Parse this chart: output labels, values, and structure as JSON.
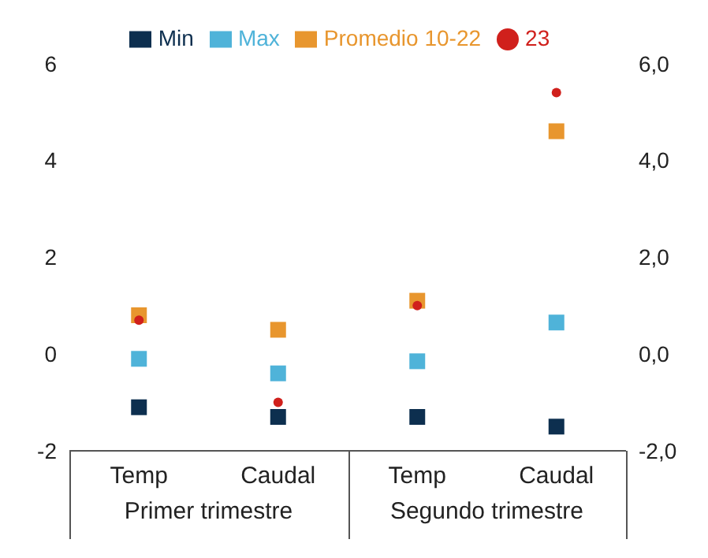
{
  "chart_data": {
    "type": "scatter",
    "categories": [
      "Temp",
      "Caudal",
      "Temp",
      "Caudal"
    ],
    "series": [
      {
        "name": "Min",
        "color": "#0d2f4f",
        "marker": "square",
        "values": [
          -1.1,
          -1.3,
          -1.3,
          -1.5
        ]
      },
      {
        "name": "Max",
        "color": "#4fb3d9",
        "marker": "square",
        "values": [
          -0.1,
          -0.4,
          -0.15,
          0.65
        ]
      },
      {
        "name": "Promedio 10-22",
        "color": "#e8962e",
        "marker": "square",
        "values": [
          0.8,
          0.5,
          1.1,
          4.6
        ]
      },
      {
        "name": "23",
        "color": "#d0201c",
        "marker": "circle",
        "values": [
          0.7,
          -1.0,
          1.0,
          5.4
        ]
      }
    ],
    "ylim": [
      -2,
      6
    ],
    "yticks": [
      -2,
      0,
      2,
      4,
      6
    ],
    "y2lim": [
      -2,
      6
    ],
    "y2ticks": [
      {
        "value": -2,
        "label": "-2,0"
      },
      {
        "value": 0,
        "label": "0,0"
      },
      {
        "value": 2,
        "label": "2,0"
      },
      {
        "value": 4,
        "label": "4,0"
      },
      {
        "value": 6,
        "label": "6,0"
      }
    ],
    "annotations": [
      "Primer trimestre",
      "Segundo trimestre"
    ],
    "legend": "top",
    "grid": false
  }
}
